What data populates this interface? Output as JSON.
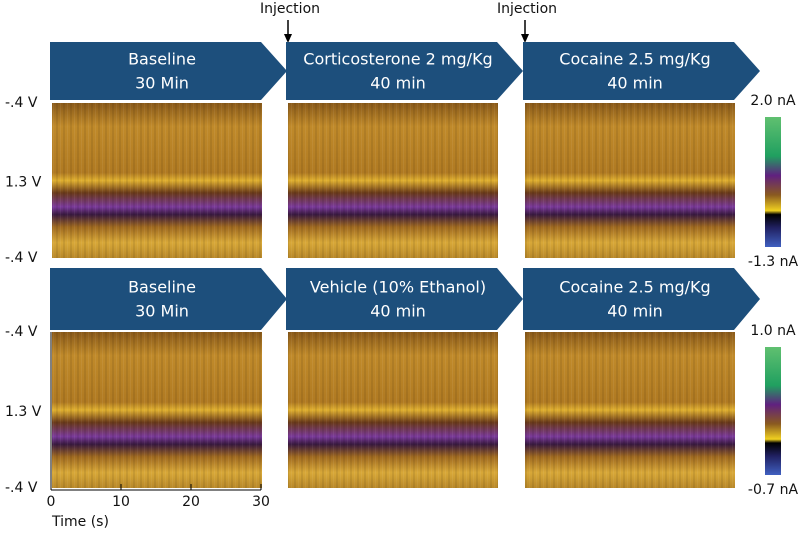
{
  "annotations": [
    "Injection",
    "Injection"
  ],
  "rows": [
    {
      "stages": [
        {
          "line1": "Baseline",
          "line2": "30 Min"
        },
        {
          "line1": "Corticosterone 2 mg/Kg",
          "line2": "40 min"
        },
        {
          "line1": "Cocaine 2.5 mg/Kg",
          "line2": "40 min"
        }
      ],
      "y_labels": [
        "-.4 V",
        "1.3 V",
        "-.4 V"
      ],
      "colorbar": {
        "max": "2.0 nA",
        "min": "-1.3 nA"
      }
    },
    {
      "stages": [
        {
          "line1": "Baseline",
          "line2": "30 Min"
        },
        {
          "line1": "Vehicle (10% Ethanol)",
          "line2": "40 min"
        },
        {
          "line1": "Cocaine 2.5 mg/Kg",
          "line2": "40 min"
        }
      ],
      "y_labels": [
        "-.4 V",
        "1.3 V",
        "-.4 V"
      ],
      "colorbar": {
        "max": "1.0 nA",
        "min": "-0.7 nA"
      }
    }
  ],
  "x_axis": {
    "ticks": [
      0,
      10,
      20,
      30
    ],
    "label": "Time (s)"
  }
}
